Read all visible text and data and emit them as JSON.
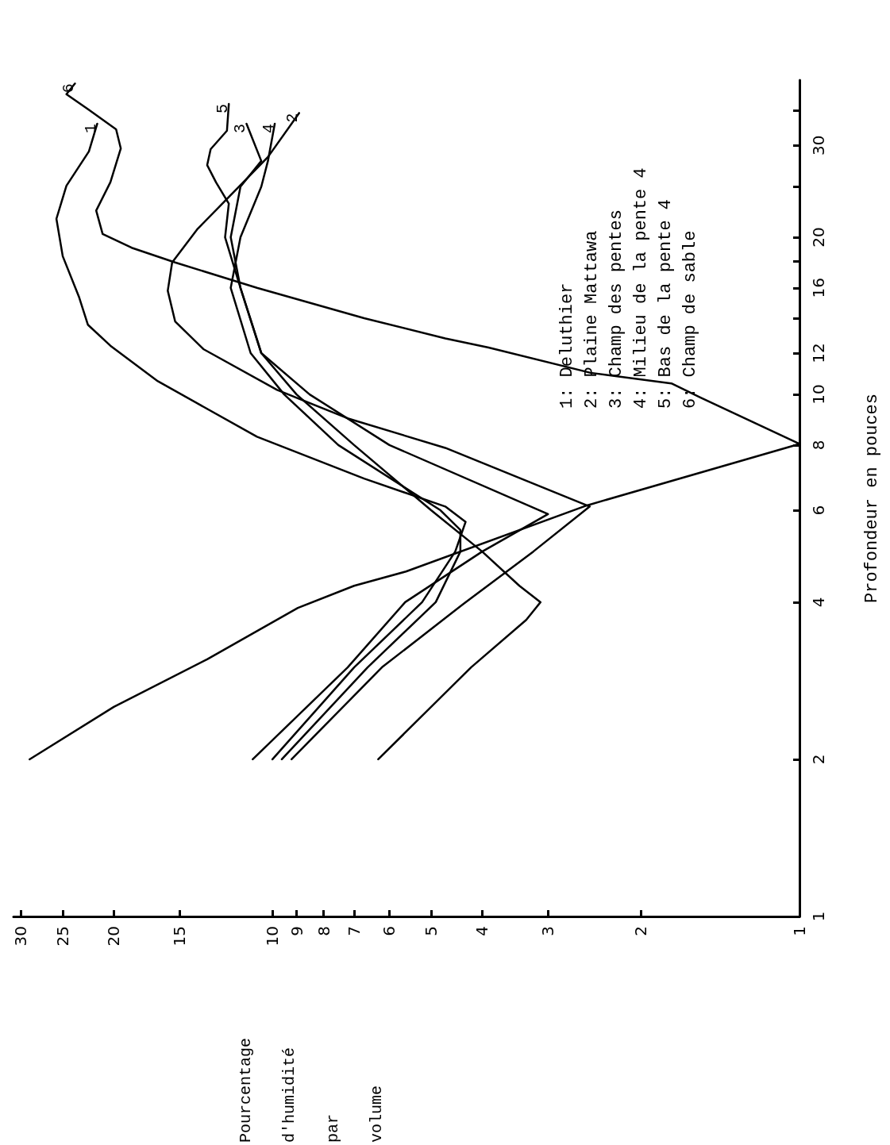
{
  "chart_data": {
    "type": "line",
    "xlabel": "Pourcentage d'humidité par volume",
    "ylabel": "Profondeur en pouces",
    "log": "xy",
    "xlim": [
      31,
      1
    ],
    "ylim": [
      1,
      40
    ],
    "xticks": [
      30,
      25,
      20,
      15,
      10,
      9,
      8,
      7,
      6,
      5,
      4,
      3,
      2,
      1
    ],
    "yticks": [
      1,
      2,
      4,
      6,
      8,
      10,
      12,
      {
        "value": 14,
        "label": null
      },
      16,
      {
        "value": 18,
        "label": null
      },
      20,
      {
        "value": 25,
        "label": null
      },
      30,
      {
        "value": 35,
        "label": null
      }
    ],
    "grid": false,
    "legend": false,
    "marker": "none",
    "line_style": "solid",
    "annotations": [
      "1: Deluthier",
      "2: Plaine Mattawa",
      "3: Champ des pentes",
      "4: Milieu de la pente 4",
      "5: Bas de la pente 4",
      "6: Champ de sable"
    ],
    "series": [
      {
        "name": "1",
        "color": "#000000",
        "x": [
          10.0,
          7.0,
          5.2,
          4.5,
          4.3,
          4.7,
          6.7,
          10.7,
          16.5,
          20.3,
          22.4,
          23.3,
          25,
          25.7,
          24.6,
          22.3,
          21.5
        ],
        "values": [
          2,
          3,
          4,
          5,
          5.7,
          6.1,
          6.9,
          8.3,
          10.6,
          12.4,
          13.6,
          15.4,
          18.4,
          21.7,
          25.1,
          29.2,
          33
        ]
      },
      {
        "name": "2",
        "color": "#000000",
        "x": [
          9.2,
          6.2,
          4.3,
          3.2,
          2.5,
          4.7,
          7.2,
          9.8,
          13.5,
          15.3,
          15.8,
          15.5,
          13.9,
          10.2,
          8.9
        ],
        "values": [
          2,
          3,
          4,
          5,
          6.1,
          7.9,
          9,
          10.2,
          12.2,
          13.8,
          15.8,
          17.9,
          20.7,
          28.5,
          34.6
        ]
      },
      {
        "name": "3",
        "color": "#000000",
        "x": [
          10.9,
          7.2,
          5.6,
          4.0,
          3.0,
          6.0,
          8.5,
          10.5,
          11.5,
          12,
          11.5,
          10.5,
          11.2
        ],
        "values": [
          2,
          3,
          4,
          5,
          5.9,
          8,
          10,
          12,
          16,
          20,
          25,
          28,
          33
        ]
      },
      {
        "name": "4",
        "color": "#000000",
        "x": [
          9.6,
          6.6,
          4.9,
          4.4,
          4.4,
          4.8,
          7.5,
          9.5,
          11,
          12,
          11.5,
          10.5,
          10.2,
          9.9
        ],
        "values": [
          2,
          3,
          4,
          5,
          5.5,
          6,
          8,
          10,
          12,
          16,
          20,
          25,
          28,
          33
        ]
      },
      {
        "name": "5",
        "color": "#000000",
        "x": [
          6.3,
          4.2,
          3.3,
          3.1,
          3.4,
          4.0,
          5.0,
          7,
          9,
          10.5,
          11.5,
          12.3,
          12.1,
          12.8,
          13.3,
          13.1,
          12.2,
          12.1
        ],
        "values": [
          2,
          3,
          3.7,
          4,
          4.3,
          5,
          6,
          8,
          10,
          12,
          16,
          20,
          23.2,
          25.5,
          27.5,
          29.5,
          32,
          36
        ]
      },
      {
        "name": "6",
        "color": "#000000",
        "x": [
          28.9,
          20,
          13.3,
          8.95,
          7.0,
          5.58,
          2.53,
          1.0,
          1.54,
          1.75,
          2.49,
          3.89,
          4.7,
          6.7,
          10.7,
          15.3,
          18.5,
          21.0,
          21.6,
          20.3,
          19.4,
          19.8,
          22.4,
          24.6,
          23.7
        ],
        "values": [
          2,
          2.52,
          3.11,
          3.9,
          4.3,
          4.58,
          6.13,
          8.04,
          9.86,
          10.5,
          11,
          12.3,
          12.8,
          14,
          16,
          17.9,
          19.1,
          20.3,
          22.5,
          25.5,
          29.6,
          32.2,
          35.2,
          37.6,
          39.4
        ]
      }
    ]
  }
}
